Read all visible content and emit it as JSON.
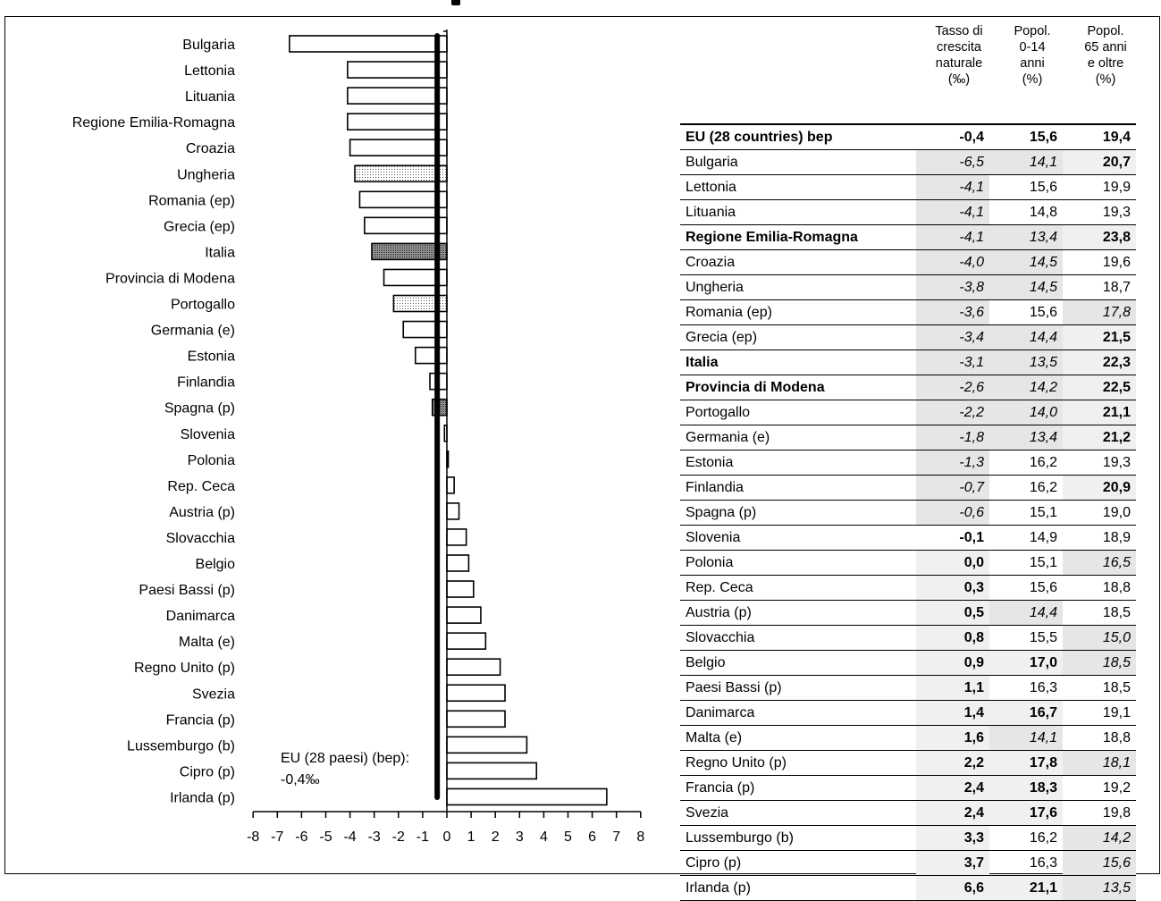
{
  "eu_annotation": {
    "line1": "EU (28 paesi) (bep):",
    "line2": "-0,4‰"
  },
  "colors": {
    "bar_fill": "#ffffff",
    "grey_cell": "#e6e6e6",
    "light_cell": "#f0f0f0",
    "reference_line": "#000000"
  },
  "chart_data": {
    "type": "bar",
    "orientation": "horizontal",
    "categories": [
      "Bulgaria",
      "Lettonia",
      "Lituania",
      "Regione Emilia-Romagna",
      "Croazia",
      "Ungheria",
      "Romania (ep)",
      "Grecia (ep)",
      "Italia",
      "Provincia di Modena",
      "Portogallo",
      "Germania (e)",
      "Estonia",
      "Finlandia",
      "Spagna (p)",
      "Slovenia",
      "Polonia",
      "Rep. Ceca",
      "Austria (p)",
      "Slovacchia",
      "Belgio",
      "Paesi Bassi (p)",
      "Danimarca",
      "Malta (e)",
      "Regno Unito (p)",
      "Svezia",
      "Francia (p)",
      "Lussemburgo (b)",
      "Cipro (p)",
      "Irlanda (p)"
    ],
    "values": [
      -6.5,
      -4.1,
      -4.1,
      -4.1,
      -4.0,
      -3.8,
      -3.6,
      -3.4,
      -3.1,
      -2.6,
      -2.2,
      -1.8,
      -1.3,
      -0.7,
      -0.6,
      -0.1,
      0.0,
      0.3,
      0.5,
      0.8,
      0.9,
      1.1,
      1.4,
      1.6,
      2.2,
      2.4,
      2.4,
      3.3,
      3.7,
      6.6
    ],
    "fill_style": [
      "none",
      "none",
      "none",
      "none",
      "none",
      "light",
      "none",
      "none",
      "dark",
      "none",
      "light",
      "none",
      "none",
      "none",
      "dark",
      "none",
      "none",
      "none",
      "none",
      "none",
      "none",
      "none",
      "none",
      "none",
      "none",
      "none",
      "none",
      "none",
      "none",
      "none"
    ],
    "reference_value": -0.4,
    "xlim": [
      -8,
      8
    ],
    "xticks": [
      "-8",
      "-7",
      "-6",
      "-5",
      "-4",
      "-3",
      "-2",
      "-1",
      "0",
      "1",
      "2",
      "3",
      "4",
      "5",
      "6",
      "7",
      "8"
    ],
    "grid": false
  },
  "table": {
    "headers": [
      "Tasso di\ncrescita\nnaturale\n(‰)",
      "Popol.\n0-14\nanni\n(%)",
      "Popol.\n65 anni\ne oltre\n(%)"
    ],
    "rows": [
      {
        "name": "EU (28 countries) bep",
        "v": [
          "-0,4",
          "15,6",
          "19,4"
        ],
        "bold_name": true,
        "styles": [
          "b",
          "b",
          "b"
        ],
        "bg": [
          "",
          "",
          ""
        ]
      },
      {
        "name": "Bulgaria",
        "v": [
          "-6,5",
          "14,1",
          "20,7"
        ],
        "bold_name": false,
        "styles": [
          "i",
          "i",
          "b"
        ],
        "bg": [
          "g1",
          "g1",
          "g2"
        ]
      },
      {
        "name": "Lettonia",
        "v": [
          "-4,1",
          "15,6",
          "19,9"
        ],
        "bold_name": false,
        "styles": [
          "i",
          "",
          ""
        ],
        "bg": [
          "g1",
          "",
          ""
        ]
      },
      {
        "name": "Lituania",
        "v": [
          "-4,1",
          "14,8",
          "19,3"
        ],
        "bold_name": false,
        "styles": [
          "i",
          "",
          ""
        ],
        "bg": [
          "g1",
          "",
          ""
        ]
      },
      {
        "name": "Regione Emilia-Romagna",
        "v": [
          "-4,1",
          "13,4",
          "23,8"
        ],
        "bold_name": true,
        "styles": [
          "i",
          "i",
          "b"
        ],
        "bg": [
          "g1",
          "g1",
          "g2"
        ]
      },
      {
        "name": "Croazia",
        "v": [
          "-4,0",
          "14,5",
          "19,6"
        ],
        "bold_name": false,
        "styles": [
          "i",
          "i",
          ""
        ],
        "bg": [
          "g1",
          "g1",
          ""
        ]
      },
      {
        "name": "Ungheria",
        "v": [
          "-3,8",
          "14,5",
          "18,7"
        ],
        "bold_name": false,
        "styles": [
          "i",
          "i",
          ""
        ],
        "bg": [
          "g1",
          "g1",
          ""
        ]
      },
      {
        "name": "Romania (ep)",
        "v": [
          "-3,6",
          "15,6",
          "17,8"
        ],
        "bold_name": false,
        "styles": [
          "i",
          "",
          "i"
        ],
        "bg": [
          "g1",
          "",
          "g1"
        ]
      },
      {
        "name": "Grecia (ep)",
        "v": [
          "-3,4",
          "14,4",
          "21,5"
        ],
        "bold_name": false,
        "styles": [
          "i",
          "i",
          "b"
        ],
        "bg": [
          "g1",
          "g1",
          "g2"
        ]
      },
      {
        "name": "Italia",
        "v": [
          "-3,1",
          "13,5",
          "22,3"
        ],
        "bold_name": true,
        "styles": [
          "i",
          "i",
          "b"
        ],
        "bg": [
          "g1",
          "g1",
          "g2"
        ]
      },
      {
        "name": "Provincia di Modena",
        "v": [
          "-2,6",
          "14,2",
          "22,5"
        ],
        "bold_name": true,
        "styles": [
          "i",
          "i",
          "b"
        ],
        "bg": [
          "g1",
          "g1",
          "g2"
        ]
      },
      {
        "name": "Portogallo",
        "v": [
          "-2,2",
          "14,0",
          "21,1"
        ],
        "bold_name": false,
        "styles": [
          "i",
          "i",
          "b"
        ],
        "bg": [
          "g1",
          "g1",
          "g2"
        ]
      },
      {
        "name": "Germania (e)",
        "v": [
          "-1,8",
          "13,4",
          "21,2"
        ],
        "bold_name": false,
        "styles": [
          "i",
          "i",
          "b"
        ],
        "bg": [
          "g1",
          "g1",
          "g2"
        ]
      },
      {
        "name": "Estonia",
        "v": [
          "-1,3",
          "16,2",
          "19,3"
        ],
        "bold_name": false,
        "styles": [
          "i",
          "",
          ""
        ],
        "bg": [
          "g1",
          "",
          ""
        ]
      },
      {
        "name": "Finlandia",
        "v": [
          "-0,7",
          "16,2",
          "20,9"
        ],
        "bold_name": false,
        "styles": [
          "i",
          "",
          "b"
        ],
        "bg": [
          "g1",
          "",
          "g2"
        ]
      },
      {
        "name": "Spagna (p)",
        "v": [
          "-0,6",
          "15,1",
          "19,0"
        ],
        "bold_name": false,
        "styles": [
          "i",
          "",
          ""
        ],
        "bg": [
          "g1",
          "",
          ""
        ]
      },
      {
        "name": "Slovenia",
        "v": [
          "-0,1",
          "14,9",
          "18,9"
        ],
        "bold_name": false,
        "styles": [
          "b",
          "",
          ""
        ],
        "bg": [
          "",
          "",
          ""
        ]
      },
      {
        "name": "Polonia",
        "v": [
          "0,0",
          "15,1",
          "16,5"
        ],
        "bold_name": false,
        "styles": [
          "b",
          "",
          "i"
        ],
        "bg": [
          "g2",
          "",
          "g1"
        ]
      },
      {
        "name": "Rep. Ceca",
        "v": [
          "0,3",
          "15,6",
          "18,8"
        ],
        "bold_name": false,
        "styles": [
          "b",
          "",
          ""
        ],
        "bg": [
          "g2",
          "",
          ""
        ]
      },
      {
        "name": "Austria (p)",
        "v": [
          "0,5",
          "14,4",
          "18,5"
        ],
        "bold_name": false,
        "styles": [
          "b",
          "i",
          ""
        ],
        "bg": [
          "g2",
          "g1",
          ""
        ]
      },
      {
        "name": "Slovacchia",
        "v": [
          "0,8",
          "15,5",
          "15,0"
        ],
        "bold_name": false,
        "styles": [
          "b",
          "",
          "i"
        ],
        "bg": [
          "g2",
          "",
          "g1"
        ]
      },
      {
        "name": "Belgio",
        "v": [
          "0,9",
          "17,0",
          "18,5"
        ],
        "bold_name": false,
        "styles": [
          "b",
          "b",
          "i"
        ],
        "bg": [
          "g2",
          "g2",
          "g1"
        ]
      },
      {
        "name": "Paesi Bassi (p)",
        "v": [
          "1,1",
          "16,3",
          "18,5"
        ],
        "bold_name": false,
        "styles": [
          "b",
          "",
          ""
        ],
        "bg": [
          "g2",
          "",
          ""
        ]
      },
      {
        "name": "Danimarca",
        "v": [
          "1,4",
          "16,7",
          "19,1"
        ],
        "bold_name": false,
        "styles": [
          "b",
          "b",
          ""
        ],
        "bg": [
          "g2",
          "g2",
          ""
        ]
      },
      {
        "name": "Malta (e)",
        "v": [
          "1,6",
          "14,1",
          "18,8"
        ],
        "bold_name": false,
        "styles": [
          "b",
          "i",
          ""
        ],
        "bg": [
          "g2",
          "g1",
          ""
        ]
      },
      {
        "name": "Regno Unito (p)",
        "v": [
          "2,2",
          "17,8",
          "18,1"
        ],
        "bold_name": false,
        "styles": [
          "b",
          "b",
          "i"
        ],
        "bg": [
          "g2",
          "g2",
          "g1"
        ]
      },
      {
        "name": "Francia (p)",
        "v": [
          "2,4",
          "18,3",
          "19,2"
        ],
        "bold_name": false,
        "styles": [
          "b",
          "b",
          ""
        ],
        "bg": [
          "g2",
          "g2",
          ""
        ]
      },
      {
        "name": "Svezia",
        "v": [
          "2,4",
          "17,6",
          "19,8"
        ],
        "bold_name": false,
        "styles": [
          "b",
          "b",
          ""
        ],
        "bg": [
          "g2",
          "g2",
          ""
        ]
      },
      {
        "name": "Lussemburgo (b)",
        "v": [
          "3,3",
          "16,2",
          "14,2"
        ],
        "bold_name": false,
        "styles": [
          "b",
          "",
          "i"
        ],
        "bg": [
          "g2",
          "",
          "g1"
        ]
      },
      {
        "name": "Cipro (p)",
        "v": [
          "3,7",
          "16,3",
          "15,6"
        ],
        "bold_name": false,
        "styles": [
          "b",
          "",
          "i"
        ],
        "bg": [
          "g2",
          "",
          "g1"
        ]
      },
      {
        "name": "Irlanda (p)",
        "v": [
          "6,6",
          "21,1",
          "13,5"
        ],
        "bold_name": false,
        "styles": [
          "b",
          "b",
          "i"
        ],
        "bg": [
          "g2",
          "g2",
          "g1"
        ]
      }
    ]
  }
}
